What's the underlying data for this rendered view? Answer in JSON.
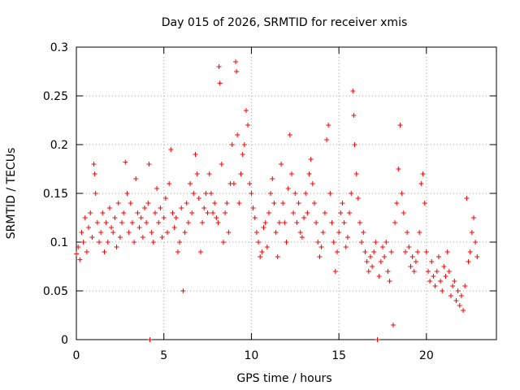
{
  "chart_data": {
    "type": "scatter",
    "title": "Day 015 of 2026, SRMTID for receiver xmis",
    "xlabel": "GPS time / hours",
    "ylabel": "SRMTID / TECUs",
    "xlim": [
      0,
      24
    ],
    "ylim": [
      0,
      0.3
    ],
    "x_ticks": [
      0,
      5,
      10,
      15,
      20
    ],
    "y_ticks": [
      0,
      0.05,
      0.1,
      0.15,
      0.2,
      0.25,
      0.3
    ],
    "x_tick_labels": [
      "0",
      "5",
      "10",
      "15",
      "20"
    ],
    "y_tick_labels": [
      "0",
      "0.05",
      "0.1",
      "0.15",
      "0.2",
      "0.25",
      "0.3"
    ],
    "grid": true,
    "marker": "+",
    "series": [
      {
        "name": "SRMTID",
        "color": "#ff0000",
        "points": [
          [
            0.0,
            0.088
          ],
          [
            0.1,
            0.095
          ],
          [
            0.2,
            0.082
          ],
          [
            0.3,
            0.11
          ],
          [
            0.4,
            0.1
          ],
          [
            0.5,
            0.125
          ],
          [
            0.6,
            0.09
          ],
          [
            0.7,
            0.115
          ],
          [
            0.8,
            0.13
          ],
          [
            0.9,
            0.105
          ],
          [
            1.0,
            0.18
          ],
          [
            1.05,
            0.17
          ],
          [
            1.1,
            0.15
          ],
          [
            1.2,
            0.12
          ],
          [
            1.3,
            0.1
          ],
          [
            1.4,
            0.11
          ],
          [
            1.5,
            0.13
          ],
          [
            1.6,
            0.09
          ],
          [
            1.7,
            0.12
          ],
          [
            1.8,
            0.1
          ],
          [
            1.9,
            0.135
          ],
          [
            2.0,
            0.115
          ],
          [
            2.1,
            0.11
          ],
          [
            2.2,
            0.125
          ],
          [
            2.3,
            0.095
          ],
          [
            2.4,
            0.14
          ],
          [
            2.5,
            0.105
          ],
          [
            2.6,
            0.12
          ],
          [
            2.7,
            0.13
          ],
          [
            2.8,
            0.182
          ],
          [
            2.9,
            0.15
          ],
          [
            3.0,
            0.11
          ],
          [
            3.1,
            0.14
          ],
          [
            3.2,
            0.12
          ],
          [
            3.3,
            0.1
          ],
          [
            3.4,
            0.165
          ],
          [
            3.5,
            0.13
          ],
          [
            3.6,
            0.115
          ],
          [
            3.7,
            0.125
          ],
          [
            3.8,
            0.105
          ],
          [
            3.9,
            0.135
          ],
          [
            4.0,
            0.12
          ],
          [
            4.1,
            0.14
          ],
          [
            4.15,
            0.18
          ],
          [
            4.2,
            0.0
          ],
          [
            4.3,
            0.11
          ],
          [
            4.4,
            0.1
          ],
          [
            4.5,
            0.13
          ],
          [
            4.6,
            0.155
          ],
          [
            4.7,
            0.12
          ],
          [
            4.8,
            0.135
          ],
          [
            4.9,
            0.105
          ],
          [
            5.0,
            0.125
          ],
          [
            5.1,
            0.145
          ],
          [
            5.2,
            0.11
          ],
          [
            5.3,
            0.16
          ],
          [
            5.4,
            0.195
          ],
          [
            5.5,
            0.13
          ],
          [
            5.6,
            0.115
          ],
          [
            5.7,
            0.125
          ],
          [
            5.8,
            0.09
          ],
          [
            5.9,
            0.1
          ],
          [
            6.0,
            0.135
          ],
          [
            6.1,
            0.05
          ],
          [
            6.2,
            0.11
          ],
          [
            6.3,
            0.14
          ],
          [
            6.4,
            0.12
          ],
          [
            6.5,
            0.16
          ],
          [
            6.6,
            0.13
          ],
          [
            6.7,
            0.15
          ],
          [
            6.8,
            0.19
          ],
          [
            6.9,
            0.17
          ],
          [
            7.0,
            0.145
          ],
          [
            7.1,
            0.09
          ],
          [
            7.2,
            0.12
          ],
          [
            7.3,
            0.135
          ],
          [
            7.4,
            0.15
          ],
          [
            7.5,
            0.13
          ],
          [
            7.6,
            0.17
          ],
          [
            7.7,
            0.15
          ],
          [
            7.8,
            0.13
          ],
          [
            7.9,
            0.14
          ],
          [
            8.0,
            0.125
          ],
          [
            8.1,
            0.12
          ],
          [
            8.15,
            0.28
          ],
          [
            8.2,
            0.263
          ],
          [
            8.3,
            0.18
          ],
          [
            8.4,
            0.1
          ],
          [
            8.5,
            0.13
          ],
          [
            8.6,
            0.14
          ],
          [
            8.7,
            0.11
          ],
          [
            8.8,
            0.16
          ],
          [
            8.9,
            0.2
          ],
          [
            9.0,
            0.16
          ],
          [
            9.1,
            0.285
          ],
          [
            9.15,
            0.275
          ],
          [
            9.2,
            0.21
          ],
          [
            9.3,
            0.14
          ],
          [
            9.4,
            0.17
          ],
          [
            9.5,
            0.19
          ],
          [
            9.6,
            0.2
          ],
          [
            9.7,
            0.235
          ],
          [
            9.8,
            0.22
          ],
          [
            9.9,
            0.16
          ],
          [
            10.0,
            0.15
          ],
          [
            10.1,
            0.135
          ],
          [
            10.2,
            0.125
          ],
          [
            10.3,
            0.11
          ],
          [
            10.4,
            0.1
          ],
          [
            10.5,
            0.085
          ],
          [
            10.6,
            0.09
          ],
          [
            10.7,
            0.115
          ],
          [
            10.8,
            0.12
          ],
          [
            10.9,
            0.095
          ],
          [
            11.0,
            0.13
          ],
          [
            11.1,
            0.15
          ],
          [
            11.2,
            0.165
          ],
          [
            11.3,
            0.14
          ],
          [
            11.4,
            0.11
          ],
          [
            11.5,
            0.085
          ],
          [
            11.6,
            0.12
          ],
          [
            11.7,
            0.18
          ],
          [
            11.8,
            0.14
          ],
          [
            11.9,
            0.12
          ],
          [
            12.0,
            0.1
          ],
          [
            12.1,
            0.155
          ],
          [
            12.2,
            0.21
          ],
          [
            12.3,
            0.17
          ],
          [
            12.4,
            0.13
          ],
          [
            12.5,
            0.15
          ],
          [
            12.6,
            0.12
          ],
          [
            12.7,
            0.14
          ],
          [
            12.8,
            0.11
          ],
          [
            12.9,
            0.105
          ],
          [
            13.0,
            0.125
          ],
          [
            13.1,
            0.15
          ],
          [
            13.2,
            0.13
          ],
          [
            13.3,
            0.17
          ],
          [
            13.4,
            0.185
          ],
          [
            13.5,
            0.16
          ],
          [
            13.6,
            0.14
          ],
          [
            13.7,
            0.12
          ],
          [
            13.8,
            0.1
          ],
          [
            13.9,
            0.085
          ],
          [
            14.0,
            0.095
          ],
          [
            14.1,
            0.11
          ],
          [
            14.2,
            0.13
          ],
          [
            14.3,
            0.205
          ],
          [
            14.4,
            0.22
          ],
          [
            14.5,
            0.15
          ],
          [
            14.6,
            0.12
          ],
          [
            14.7,
            0.1
          ],
          [
            14.8,
            0.07
          ],
          [
            14.9,
            0.09
          ],
          [
            15.0,
            0.11
          ],
          [
            15.1,
            0.13
          ],
          [
            15.2,
            0.14
          ],
          [
            15.3,
            0.12
          ],
          [
            15.4,
            0.095
          ],
          [
            15.5,
            0.105
          ],
          [
            15.6,
            0.13
          ],
          [
            15.7,
            0.15
          ],
          [
            15.8,
            0.255
          ],
          [
            15.85,
            0.23
          ],
          [
            15.9,
            0.2
          ],
          [
            16.0,
            0.17
          ],
          [
            16.1,
            0.145
          ],
          [
            16.2,
            0.12
          ],
          [
            16.3,
            0.1
          ],
          [
            16.4,
            0.11
          ],
          [
            16.5,
            0.09
          ],
          [
            16.6,
            0.08
          ],
          [
            16.7,
            0.07
          ],
          [
            16.8,
            0.085
          ],
          [
            16.9,
            0.075
          ],
          [
            17.0,
            0.09
          ],
          [
            17.1,
            0.1
          ],
          [
            17.2,
            0.0
          ],
          [
            17.3,
            0.065
          ],
          [
            17.4,
            0.08
          ],
          [
            17.5,
            0.095
          ],
          [
            17.6,
            0.085
          ],
          [
            17.7,
            0.1
          ],
          [
            17.8,
            0.07
          ],
          [
            17.9,
            0.06
          ],
          [
            18.0,
            0.09
          ],
          [
            18.1,
            0.015
          ],
          [
            18.2,
            0.12
          ],
          [
            18.3,
            0.14
          ],
          [
            18.4,
            0.175
          ],
          [
            18.5,
            0.22
          ],
          [
            18.6,
            0.15
          ],
          [
            18.7,
            0.13
          ],
          [
            18.8,
            0.09
          ],
          [
            18.9,
            0.11
          ],
          [
            19.0,
            0.095
          ],
          [
            19.1,
            0.075
          ],
          [
            19.2,
            0.085
          ],
          [
            19.3,
            0.07
          ],
          [
            19.4,
            0.08
          ],
          [
            19.5,
            0.09
          ],
          [
            19.6,
            0.11
          ],
          [
            19.7,
            0.16
          ],
          [
            19.8,
            0.17
          ],
          [
            19.9,
            0.14
          ],
          [
            20.0,
            0.09
          ],
          [
            20.1,
            0.07
          ],
          [
            20.2,
            0.06
          ],
          [
            20.3,
            0.08
          ],
          [
            20.4,
            0.065
          ],
          [
            20.5,
            0.055
          ],
          [
            20.6,
            0.07
          ],
          [
            20.7,
            0.085
          ],
          [
            20.8,
            0.06
          ],
          [
            20.9,
            0.05
          ],
          [
            21.0,
            0.075
          ],
          [
            21.1,
            0.065
          ],
          [
            21.2,
            0.09
          ],
          [
            21.3,
            0.07
          ],
          [
            21.4,
            0.045
          ],
          [
            21.5,
            0.055
          ],
          [
            21.6,
            0.06
          ],
          [
            21.7,
            0.04
          ],
          [
            21.8,
            0.05
          ],
          [
            21.9,
            0.035
          ],
          [
            22.0,
            0.045
          ],
          [
            22.1,
            0.03
          ],
          [
            22.2,
            0.055
          ],
          [
            22.3,
            0.145
          ],
          [
            22.4,
            0.08
          ],
          [
            22.5,
            0.09
          ],
          [
            22.6,
            0.11
          ],
          [
            22.7,
            0.125
          ],
          [
            22.8,
            0.1
          ],
          [
            22.9,
            0.085
          ]
        ]
      }
    ]
  }
}
